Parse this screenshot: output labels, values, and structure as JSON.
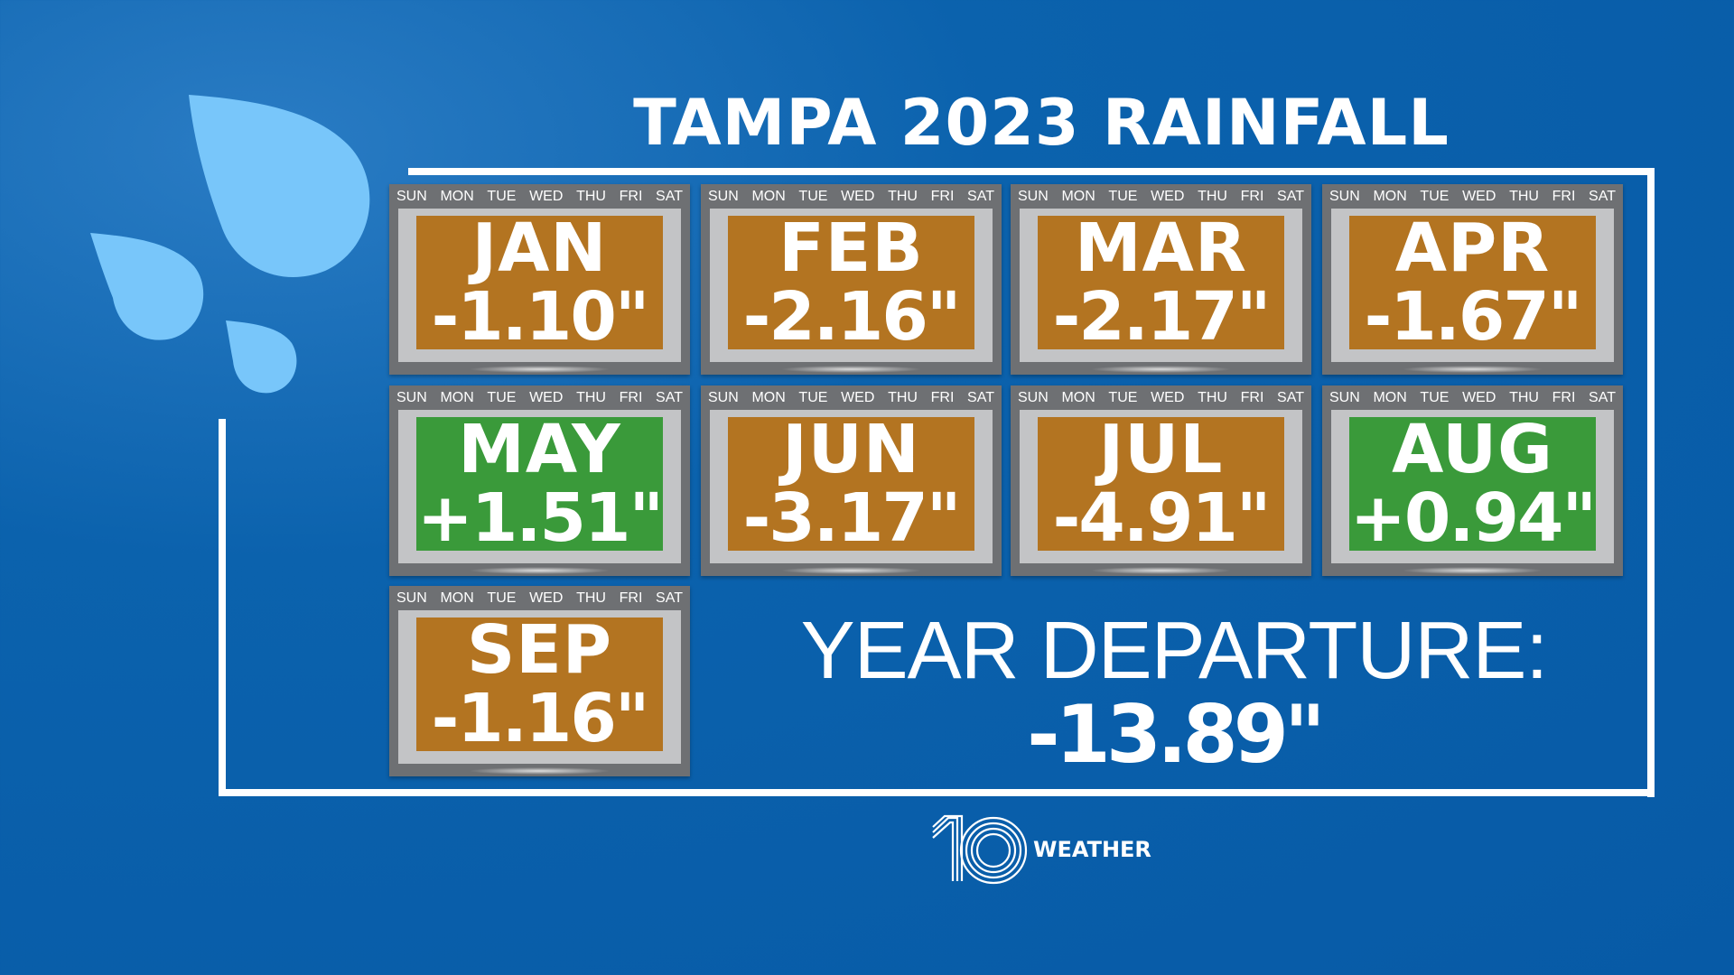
{
  "title": "TAMPA 2023 RAINFALL",
  "days": [
    "SUN",
    "MON",
    "TUE",
    "WED",
    "THU",
    "FRI",
    "SAT"
  ],
  "colors": {
    "background": "#0b62ad",
    "below_normal": "#b37421",
    "above_normal": "#3a9a3a",
    "drops": "#78c6fa"
  },
  "months": [
    {
      "month": "JAN",
      "departure": "-1.10\"",
      "status": "below"
    },
    {
      "month": "FEB",
      "departure": "-2.16\"",
      "status": "below"
    },
    {
      "month": "MAR",
      "departure": "-2.17\"",
      "status": "below"
    },
    {
      "month": "APR",
      "departure": "-1.67\"",
      "status": "below"
    },
    {
      "month": "MAY",
      "departure": "+1.51\"",
      "status": "above"
    },
    {
      "month": "JUN",
      "departure": "-3.17\"",
      "status": "below"
    },
    {
      "month": "JUL",
      "departure": "-4.91\"",
      "status": "below"
    },
    {
      "month": "AUG",
      "departure": "+0.94\"",
      "status": "above"
    },
    {
      "month": "SEP",
      "departure": "-1.16\"",
      "status": "below"
    }
  ],
  "year": {
    "label": "YEAR DEPARTURE:",
    "value": "-13.89\""
  },
  "logo": {
    "number": "10",
    "text": "WEATHER"
  }
}
